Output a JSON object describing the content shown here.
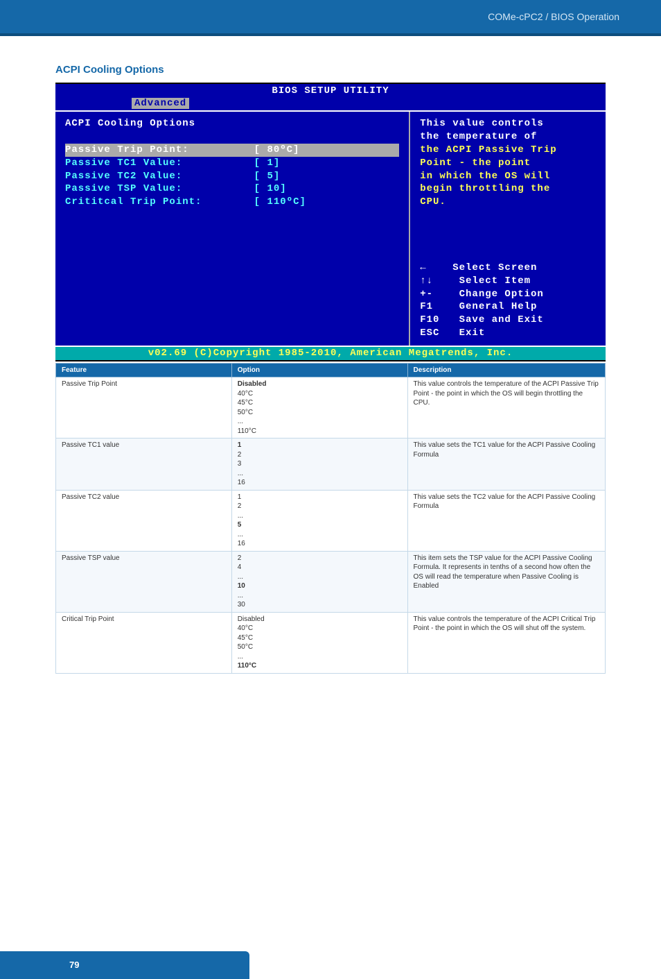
{
  "header": {
    "breadcrumb": "COMe-cPC2 / BIOS Operation"
  },
  "section": {
    "title": "ACPI Cooling Options"
  },
  "bios": {
    "title": "BIOS SETUP UTILITY",
    "active_tab": "Advanced",
    "left_heading": "ACPI Cooling Options",
    "rows": [
      {
        "label": "Passive Trip Point:",
        "value": "[ 80ºC]",
        "selected": true
      },
      {
        "label": "Passive TC1 Value:",
        "value": "[ 1]",
        "selected": false
      },
      {
        "label": "Passive TC2 Value:",
        "value": "[ 5]",
        "selected": false
      },
      {
        "label": "Passive TSP Value:",
        "value": "[ 10]",
        "selected": false
      },
      {
        "label": "Crititcal Trip Point:",
        "value": "[ 110ºC]",
        "selected": false
      }
    ],
    "help_text": "This value controls\nthe temperature of\nthe ACPI Passive Trip\nPoint - the point\nin which the OS will\nbegin throttling the\nCPU.",
    "nav": [
      {
        "key": "←",
        "action": "Select Screen"
      },
      {
        "key": "↑↓",
        "action": " Select Item"
      },
      {
        "key": "+-",
        "action": " Change Option"
      },
      {
        "key": "F1",
        "action": " General Help"
      },
      {
        "key": "F10",
        "action": " Save and Exit"
      },
      {
        "key": "ESC",
        "action": " Exit"
      }
    ],
    "copyright": "v02.69 (C)Copyright 1985-2010, American Megatrends, Inc."
  },
  "table": {
    "columns": [
      "Feature",
      "Option",
      "Description"
    ],
    "col_widths": [
      "32%",
      "32%",
      "36%"
    ],
    "rows": [
      {
        "feature": "Passive Trip Point",
        "options": [
          {
            "t": "Disabled",
            "b": true
          },
          {
            "t": "40°C"
          },
          {
            "t": "45°C"
          },
          {
            "t": "50°C"
          },
          {
            "t": "..."
          },
          {
            "t": "110°C"
          }
        ],
        "description": "This value controls the temperature of the ACPI Passive Trip Point - the point in which the OS will begin throttling the CPU."
      },
      {
        "feature": "Passive TC1 value",
        "options": [
          {
            "t": "1",
            "b": true
          },
          {
            "t": "2"
          },
          {
            "t": "3"
          },
          {
            "t": "..."
          },
          {
            "t": "16"
          }
        ],
        "description": "This value sets the TC1 value for the ACPI Passive Cooling Formula"
      },
      {
        "feature": "Passive TC2 value",
        "options": [
          {
            "t": "1"
          },
          {
            "t": "2"
          },
          {
            "t": "..."
          },
          {
            "t": "5",
            "b": true
          },
          {
            "t": "..."
          },
          {
            "t": "16"
          }
        ],
        "description": "This value sets the TC2 value for the ACPI Passive Cooling Formula"
      },
      {
        "feature": "Passive TSP value",
        "options": [
          {
            "t": "2"
          },
          {
            "t": "4"
          },
          {
            "t": "..."
          },
          {
            "t": "10",
            "b": true
          },
          {
            "t": "..."
          },
          {
            "t": "30"
          }
        ],
        "description": "This item sets the TSP value for the ACPI Passive Cooling Formula. It represents in tenths of a second how often the OS will read the temperature when Passive Cooling is Enabled"
      },
      {
        "feature": "Critical Trip Point",
        "options": [
          {
            "t": "Disabled"
          },
          {
            "t": "40°C"
          },
          {
            "t": "45°C"
          },
          {
            "t": "50°C"
          },
          {
            "t": "..."
          },
          {
            "t": "110°C",
            "b": true
          }
        ],
        "description": "This value controls the temperature of the ACPI Critical Trip Point - the point in which the OS will shut off the system."
      }
    ]
  },
  "footer": {
    "page": "79"
  },
  "colors": {
    "brand_blue": "#1568a8",
    "bios_bg": "#0000aa",
    "bios_gray": "#aaaaaa",
    "bios_cyan": "#55ffff",
    "bios_yellow": "#ffff55",
    "bios_footer_bg": "#00aaaa"
  }
}
